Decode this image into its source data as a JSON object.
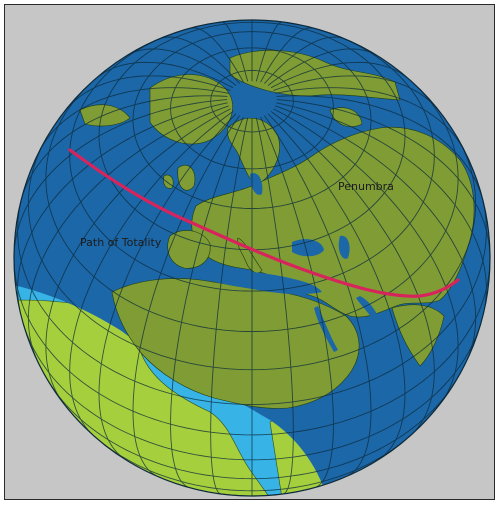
{
  "labels": {
    "penumbra": "Penumbra",
    "path_of_totality": "Path of Totality"
  },
  "colors": {
    "background": "#c6c6c6",
    "ocean_sunlit": "#37b3e6",
    "ocean_shadow": "#1c67a8",
    "land_sunlit": "#a6cf3e",
    "land_shadow": "#7f9c35",
    "grid": "#0c2a3a",
    "totality_path": "#d8245c"
  },
  "icons": [
    "globe-icon"
  ]
}
